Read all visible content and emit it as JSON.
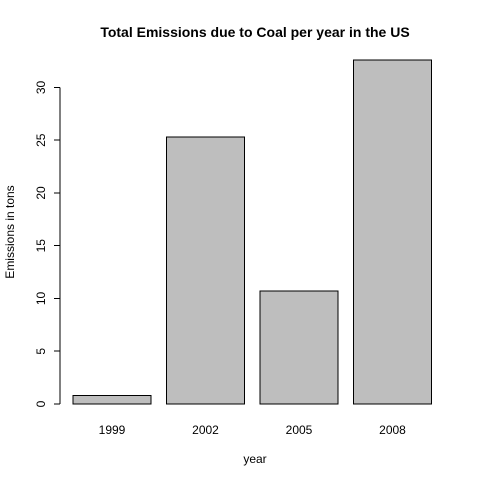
{
  "chart_data": {
    "type": "bar",
    "title": "Total Emissions due to Coal per year in the US",
    "xlabel": "year",
    "ylabel": "Emissions in tons",
    "categories": [
      "1999",
      "2002",
      "2005",
      "2008"
    ],
    "values": [
      0.8,
      25.3,
      10.7,
      32.6
    ],
    "ylim": [
      0,
      32.6
    ],
    "yticks": [
      0,
      5,
      10,
      15,
      20,
      25,
      30
    ],
    "grid": false,
    "legend": "none",
    "colors": {
      "bar_fill": "#bebebe",
      "bar_border": "#000000",
      "axis": "#000000",
      "background": "#ffffff"
    }
  }
}
